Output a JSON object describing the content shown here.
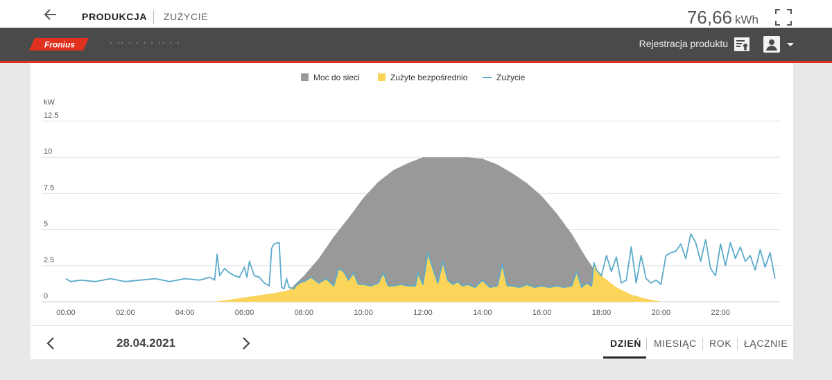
{
  "header": {
    "tabs": [
      {
        "label": "PRODUKCJA",
        "active": true
      },
      {
        "label": "ZUŻYCIE",
        "active": false
      }
    ],
    "total_value": "76,66",
    "total_unit": "kWh"
  },
  "appbar": {
    "brand": "Fronius",
    "system_name": "· ·· · · · · ·· · ·",
    "register_label": "Rejestracja produktu",
    "accent_color": "#e0301e"
  },
  "legend": [
    {
      "label": "Moc do sieci",
      "color": "#999999",
      "kind": "area"
    },
    {
      "label": "Zużyte bezpośrednio",
      "color": "#fbd55a",
      "kind": "area"
    },
    {
      "label": "Zużycie",
      "color": "#5aaacb",
      "kind": "line"
    }
  ],
  "footer": {
    "date": "28.04.2021",
    "ranges": [
      {
        "label": "DZIEŃ",
        "active": true
      },
      {
        "label": "MIESIĄC",
        "active": false
      },
      {
        "label": "ROK",
        "active": false
      },
      {
        "label": "ŁĄCZNIE",
        "active": false
      }
    ]
  },
  "chart_data": {
    "type": "area",
    "ylabel": "kW",
    "ylim": [
      0,
      12.5
    ],
    "yticks": [
      "0",
      "2.5",
      "5",
      "7.5",
      "10",
      "12.5"
    ],
    "xlim": [
      "00:00",
      "24:00"
    ],
    "xticks": [
      "00:00",
      "02:00",
      "04:00",
      "06:00",
      "08:00",
      "10:00",
      "12:00",
      "14:00",
      "16:00",
      "18:00",
      "20:00",
      "22:00"
    ],
    "grid": true,
    "legend_position": "top",
    "series": [
      {
        "name": "Moc do sieci",
        "type": "area",
        "color": "#999999",
        "x": [
          "05:00",
          "06:00",
          "07:00",
          "07:30",
          "08:00",
          "08:30",
          "09:00",
          "09:30",
          "10:00",
          "10:30",
          "11:00",
          "11:30",
          "12:00",
          "12:30",
          "13:00",
          "13:30",
          "14:00",
          "14:30",
          "15:00",
          "15:30",
          "16:00",
          "16:30",
          "17:00",
          "17:30",
          "18:00",
          "18:30",
          "19:00",
          "19:30",
          "20:00"
        ],
        "values": [
          0.0,
          0.2,
          0.5,
          0.8,
          1.8,
          3.0,
          4.5,
          5.8,
          7.2,
          8.3,
          9.1,
          9.6,
          10.0,
          10.0,
          10.0,
          10.0,
          9.9,
          9.5,
          8.9,
          8.2,
          7.3,
          6.1,
          4.7,
          3.0,
          1.5,
          0.8,
          0.5,
          0.2,
          0.0
        ]
      },
      {
        "name": "Zużyte bezpośrednio",
        "type": "area",
        "color": "#fbd55a",
        "x": [
          "05:00",
          "06:00",
          "07:00",
          "07:30",
          "08:00",
          "08:15",
          "08:30",
          "08:45",
          "09:00",
          "09:10",
          "09:20",
          "09:30",
          "09:40",
          "09:50",
          "10:00",
          "10:15",
          "10:30",
          "10:40",
          "10:50",
          "11:00",
          "11:15",
          "11:30",
          "11:45",
          "11:50",
          "12:00",
          "12:10",
          "12:20",
          "12:30",
          "12:40",
          "12:50",
          "13:00",
          "13:10",
          "13:20",
          "13:30",
          "13:45",
          "14:00",
          "14:15",
          "14:30",
          "14:40",
          "14:50",
          "15:00",
          "15:15",
          "15:30",
          "15:45",
          "16:00",
          "16:15",
          "16:30",
          "16:45",
          "17:00",
          "17:10",
          "17:20",
          "17:30",
          "17:40",
          "17:45",
          "17:50",
          "18:00",
          "18:30",
          "19:00",
          "19:30",
          "20:00"
        ],
        "values": [
          0.0,
          0.3,
          0.6,
          0.8,
          1.4,
          1.7,
          1.3,
          1.6,
          1.1,
          2.3,
          2.1,
          1.5,
          2.0,
          1.2,
          1.2,
          1.1,
          1.3,
          2.0,
          1.1,
          1.1,
          1.2,
          1.1,
          1.1,
          2.0,
          1.2,
          3.4,
          2.3,
          1.3,
          2.8,
          1.5,
          1.2,
          1.4,
          1.1,
          1.2,
          1.0,
          1.5,
          1.0,
          1.1,
          2.6,
          1.1,
          1.1,
          1.0,
          1.2,
          1.0,
          1.1,
          1.0,
          1.1,
          1.0,
          1.1,
          2.1,
          1.0,
          1.3,
          1.1,
          2.7,
          2.2,
          1.8,
          1.0,
          0.5,
          0.2,
          0.0
        ]
      },
      {
        "name": "Zużycie",
        "type": "line",
        "color": "#5aaacb",
        "x": [
          "00:00",
          "00:10",
          "00:30",
          "01:00",
          "01:30",
          "02:00",
          "02:30",
          "03:00",
          "03:30",
          "04:00",
          "04:30",
          "04:50",
          "05:00",
          "05:05",
          "05:10",
          "05:20",
          "05:30",
          "05:40",
          "05:50",
          "06:00",
          "06:05",
          "06:10",
          "06:20",
          "06:30",
          "06:40",
          "06:50",
          "06:55",
          "07:00",
          "07:10",
          "07:15",
          "07:20",
          "07:25",
          "07:30",
          "07:40",
          "07:50",
          "08:00",
          "08:15",
          "08:30",
          "08:45",
          "09:00",
          "09:10",
          "09:20",
          "09:30",
          "09:40",
          "09:50",
          "10:00",
          "10:15",
          "10:30",
          "10:40",
          "10:50",
          "11:00",
          "11:15",
          "11:30",
          "11:45",
          "11:50",
          "12:00",
          "12:10",
          "12:20",
          "12:30",
          "12:40",
          "12:50",
          "13:00",
          "13:10",
          "13:20",
          "13:30",
          "13:45",
          "14:00",
          "14:15",
          "14:30",
          "14:40",
          "14:50",
          "15:00",
          "15:15",
          "15:30",
          "15:45",
          "16:00",
          "16:15",
          "16:30",
          "16:45",
          "17:00",
          "17:10",
          "17:20",
          "17:30",
          "17:40",
          "17:45",
          "17:50",
          "18:00",
          "18:10",
          "18:20",
          "18:30",
          "18:40",
          "18:50",
          "19:00",
          "19:10",
          "19:20",
          "19:30",
          "19:40",
          "19:50",
          "20:00",
          "20:10",
          "20:20",
          "20:30",
          "20:40",
          "20:50",
          "21:00",
          "21:10",
          "21:20",
          "21:30",
          "21:40",
          "21:50",
          "22:00",
          "22:10",
          "22:20",
          "22:30",
          "22:40",
          "22:50",
          "23:00",
          "23:10",
          "23:20",
          "23:30",
          "23:40",
          "23:50"
        ],
        "values": [
          1.6,
          1.4,
          1.5,
          1.4,
          1.6,
          1.4,
          1.5,
          1.6,
          1.4,
          1.6,
          1.5,
          1.7,
          1.5,
          3.3,
          1.8,
          2.3,
          2.0,
          1.8,
          1.7,
          2.4,
          1.7,
          2.8,
          1.8,
          1.7,
          1.3,
          1.1,
          3.7,
          4.0,
          4.1,
          1.0,
          0.9,
          1.6,
          1.0,
          0.9,
          1.4,
          1.4,
          1.7,
          1.3,
          1.6,
          1.1,
          2.3,
          2.1,
          1.5,
          2.0,
          1.2,
          1.2,
          1.1,
          1.3,
          2.0,
          1.1,
          1.1,
          1.2,
          1.1,
          1.1,
          2.0,
          1.2,
          3.4,
          2.3,
          1.3,
          2.8,
          1.5,
          1.2,
          1.4,
          1.1,
          1.2,
          1.0,
          1.5,
          1.0,
          1.1,
          2.6,
          1.1,
          1.1,
          1.0,
          1.2,
          1.0,
          1.1,
          1.0,
          1.1,
          1.0,
          1.1,
          2.1,
          1.0,
          1.3,
          1.1,
          2.7,
          2.2,
          1.8,
          3.2,
          2.1,
          3.1,
          1.3,
          1.5,
          3.8,
          1.3,
          3.2,
          1.6,
          1.3,
          1.5,
          1.2,
          3.2,
          3.4,
          3.5,
          4.0,
          3.0,
          4.7,
          4.1,
          2.8,
          4.3,
          2.3,
          1.8,
          4.0,
          2.5,
          4.1,
          3.0,
          3.8,
          2.8,
          3.2,
          2.2,
          3.6,
          2.4,
          3.4,
          1.6
        ]
      }
    ]
  }
}
